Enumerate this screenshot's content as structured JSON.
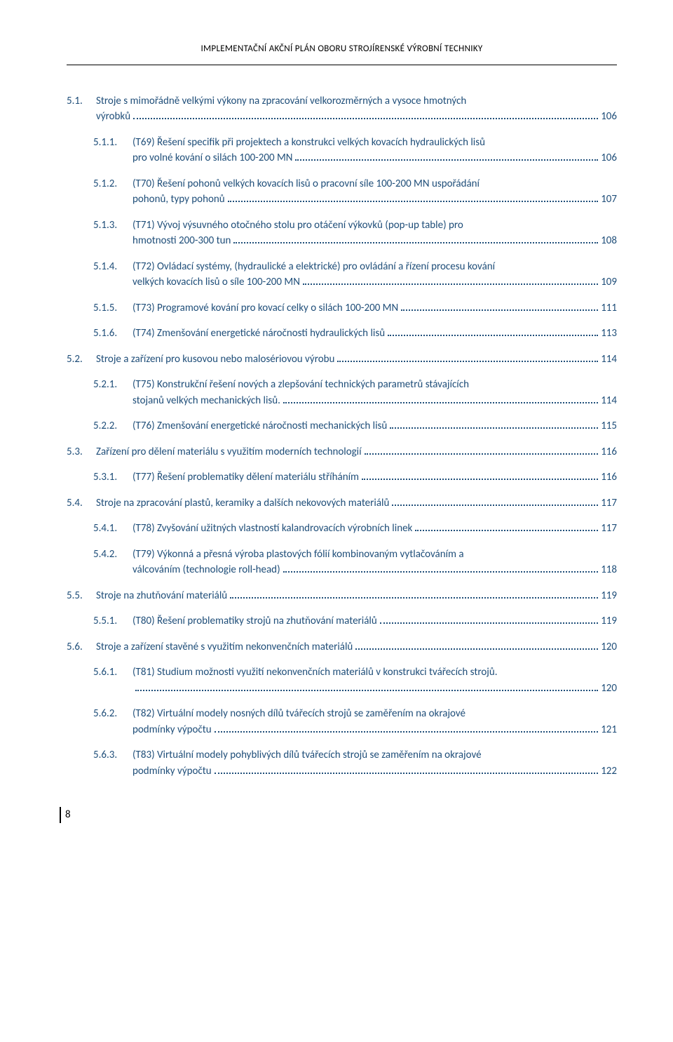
{
  "header": "IMPLEMENTAČNÍ AKČNÍ PLÁN OBORU STROJÍRENSKÉ VÝROBNÍ TECHNIKY",
  "footer_page": "8",
  "text_color": "#1f4e79",
  "entries": [
    {
      "level": 1,
      "num": "5.1.",
      "lines": [
        "Stroje s mimořádně velkými výkony na zpracování velkorozměrných a vysoce hmotných",
        "výrobků"
      ],
      "page": "106"
    },
    {
      "level": 2,
      "num": "5.1.1.",
      "lines": [
        "(T69) Řešení specifik při projektech a konstrukci velkých kovacích hydraulických lisů",
        "pro volné kování o silách 100-200 MN"
      ],
      "page": "106"
    },
    {
      "level": 2,
      "num": "5.1.2.",
      "lines": [
        "(T70) Řešení pohonů velkých kovacích lisů o pracovní síle 100-200 MN  uspořádání",
        "pohonů, typy pohonů"
      ],
      "page": "107"
    },
    {
      "level": 2,
      "num": "5.1.3.",
      "lines": [
        "(T71) Vývoj výsuvného otočného stolu pro otáčení výkovků (pop-up table) pro",
        "hmotnosti 200-300 tun"
      ],
      "page": "108"
    },
    {
      "level": 2,
      "num": "5.1.4.",
      "lines": [
        "(T72) Ovládací systémy, (hydraulické a elektrické) pro ovládání a řízení procesu kování",
        "velkých kovacích lisů o síle 100-200 MN"
      ],
      "page": "109"
    },
    {
      "level": 2,
      "num": "5.1.5.",
      "lines": [
        "(T73) Programové kování pro kovací celky o silách 100-200 MN"
      ],
      "page": "111"
    },
    {
      "level": 2,
      "num": "5.1.6.",
      "lines": [
        "(T74) Zmenšování energetické náročnosti hydraulických lisů"
      ],
      "page": "113"
    },
    {
      "level": 1,
      "num": "5.2.",
      "lines": [
        "Stroje a zařízení pro kusovou nebo malosériovou výrobu"
      ],
      "page": "114"
    },
    {
      "level": 2,
      "num": "5.2.1.",
      "lines": [
        "(T75) Konstrukční řešení nových a zlepšování technických parametrů stávajících",
        "stojanů velkých mechanických lisů."
      ],
      "page": "114"
    },
    {
      "level": 2,
      "num": "5.2.2.",
      "lines": [
        "(T76) Zmenšování energetické náročnosti mechanických lisů"
      ],
      "page": "115"
    },
    {
      "level": 1,
      "num": "5.3.",
      "lines": [
        "Zařízení pro dělení materiálu s využitím moderních technologií"
      ],
      "page": "116"
    },
    {
      "level": 2,
      "num": "5.3.1.",
      "lines": [
        "(T77) Řešení problematiky dělení materiálu stříháním"
      ],
      "page": "116"
    },
    {
      "level": 1,
      "num": "5.4.",
      "lines": [
        "Stroje na zpracování plastů, keramiky a dalších nekovových materiálů"
      ],
      "page": "117"
    },
    {
      "level": 2,
      "num": "5.4.1.",
      "lines": [
        "(T78) Zvyšování užitných vlastností kalandrovacích výrobních linek"
      ],
      "page": "117"
    },
    {
      "level": 2,
      "num": "5.4.2.",
      "lines": [
        "(T79) Výkonná a přesná výroba plastových fólií kombinovaným vytlačováním a",
        "válcováním (technologie roll-head)"
      ],
      "page": "118"
    },
    {
      "level": 1,
      "num": "5.5.",
      "lines": [
        "Stroje na zhutňování materiálů"
      ],
      "page": "119"
    },
    {
      "level": 2,
      "num": "5.5.1.",
      "lines": [
        "(T80) Řešení problematiky strojů na zhutňování materiálů"
      ],
      "page": "119"
    },
    {
      "level": 1,
      "num": "5.6.",
      "lines": [
        "Stroje a zařízení stavěné s využitím nekonvenčních materiálů"
      ],
      "page": "120"
    },
    {
      "level": 2,
      "num": "5.6.1.",
      "lines": [
        "(T81) Studium možnosti využití nekonvenčních materiálů v konstrukci tvářecích strojů.",
        ""
      ],
      "page": "120"
    },
    {
      "level": 2,
      "num": "5.6.2.",
      "lines": [
        "(T82) Virtuální modely nosných dílů tvářecích strojů se zaměřením na okrajové",
        "podmínky výpočtu"
      ],
      "page": "121"
    },
    {
      "level": 2,
      "num": "5.6.3.",
      "lines": [
        "(T83) Virtuální modely pohyblivých dílů tvářecích strojů se zaměřením na okrajové",
        "podmínky výpočtu"
      ],
      "page": "122"
    }
  ]
}
